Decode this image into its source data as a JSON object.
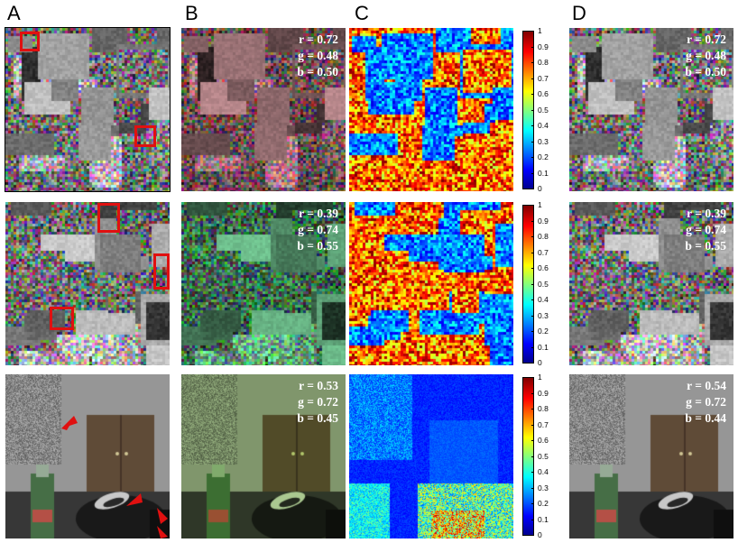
{
  "panel_labels": [
    "A",
    "B",
    "C",
    "D"
  ],
  "rows": [
    {
      "b_params": {
        "r": "r = 0.72",
        "g": "g = 0.48",
        "b": "b = 0.50"
      },
      "d_params": {
        "r": "r = 0.72",
        "g": "g = 0.48",
        "b": "b = 0.50"
      }
    },
    {
      "b_params": {
        "r": "r = 0.39",
        "g": "g = 0.74",
        "b": "b = 0.55"
      },
      "d_params": {
        "r": "r = 0.39",
        "g": "g = 0.74",
        "b": "b = 0.55"
      }
    },
    {
      "b_params": {
        "r": "r = 0.53",
        "g": "g = 0.72",
        "b": "b = 0.45"
      },
      "d_params": {
        "r": "r = 0.54",
        "g": "g = 0.72",
        "b": "b = 0.44"
      }
    }
  ],
  "colorbar_ticks": [
    "1",
    "0.9",
    "0.8",
    "0.7",
    "0.6",
    "0.5",
    "0.4",
    "0.3",
    "0.2",
    "0.1",
    "0"
  ],
  "colors": {
    "highlight": "#e01010"
  }
}
